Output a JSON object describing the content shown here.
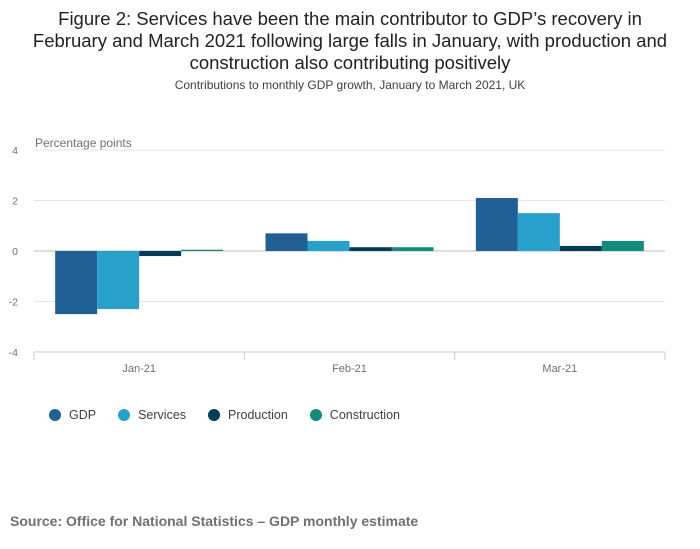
{
  "title": "Figure 2: Services have been the main contributor to GDP’s recovery in February and March 2021 following large falls in January, with production and construction also contributing positively",
  "subtitle": "Contributions to monthly GDP growth, January to March 2021, UK",
  "source": "Source: Office for National Statistics – GDP monthly estimate",
  "chart_data": {
    "type": "bar",
    "title": "",
    "ylabel": "Percentage points",
    "xlabel": "",
    "ylim": [
      -4,
      4
    ],
    "yticks": [
      4,
      2,
      0,
      -2,
      -4
    ],
    "yticklabels": [
      "4",
      "2",
      "0",
      "-2",
      "-4"
    ],
    "categories": [
      "Jan-21",
      "Feb-21",
      "Mar-21"
    ],
    "grid": true,
    "legend_position": "bottom-left",
    "series": [
      {
        "name": "GDP",
        "color": "#206095",
        "values": [
          -2.5,
          0.7,
          2.1
        ]
      },
      {
        "name": "Services",
        "color": "#27a0cc",
        "values": [
          -2.3,
          0.4,
          1.5
        ]
      },
      {
        "name": "Production",
        "color": "#003c57",
        "values": [
          -0.2,
          0.15,
          0.2
        ]
      },
      {
        "name": "Construction",
        "color": "#118c7b",
        "values": [
          0.05,
          0.15,
          0.4
        ]
      }
    ]
  }
}
